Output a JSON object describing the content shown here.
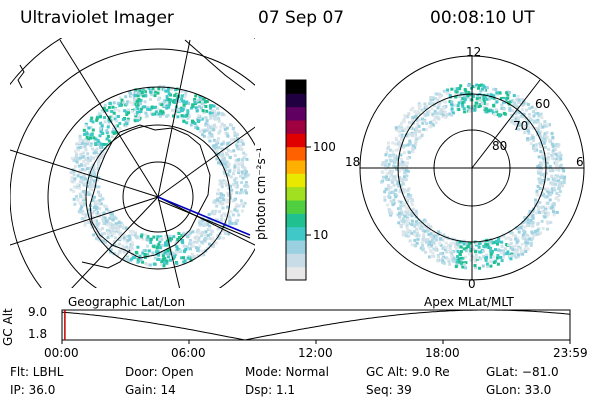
{
  "header": {
    "instrument": "Ultraviolet Imager",
    "date": "07 Sep 07",
    "time": "00:08:10 UT"
  },
  "colorbar": {
    "unit_label": "photon cm⁻²s⁻¹",
    "ticks": [
      "100",
      "10"
    ],
    "colors": [
      "#e8e8e8",
      "#c8dce8",
      "#9ad0e0",
      "#40c8c8",
      "#20c090",
      "#50d040",
      "#a0e020",
      "#e8e800",
      "#ffb000",
      "#ff6000",
      "#e00000",
      "#a00040",
      "#600060",
      "#200040",
      "#000000"
    ]
  },
  "left_panel": {
    "caption": "Geographic Lat/Lon"
  },
  "right_panel": {
    "caption": "Apex MLat/MLT",
    "mlt_labels": {
      "top": "12",
      "left": "18",
      "right": "6",
      "bottom": "0"
    },
    "lat_labels": [
      "60",
      "70",
      "80"
    ]
  },
  "altitude_plot": {
    "ylabel": "GC Alt",
    "y_ticks": [
      "9.0",
      "1.8"
    ],
    "x_ticks": [
      "00:00",
      "06:00",
      "12:00",
      "18:00",
      "23:59"
    ],
    "ylim": [
      1.8,
      9.0
    ],
    "xlim_hours": [
      0,
      24
    ],
    "current_time_hours": 0.136
  },
  "status": {
    "row1": [
      {
        "key": "flt",
        "text": "Flt: LBHL"
      },
      {
        "key": "door",
        "text": "Door: Open"
      },
      {
        "key": "mode",
        "text": "Mode: Normal"
      },
      {
        "key": "gcalt",
        "text": "GC Alt: 9.0 Re"
      },
      {
        "key": "glat",
        "text": "GLat: −81.0"
      }
    ],
    "row2": [
      {
        "key": "ip",
        "text": "IP: 36.0"
      },
      {
        "key": "gain",
        "text": "Gain: 14"
      },
      {
        "key": "dsp",
        "text": "Dsp:    1.1"
      },
      {
        "key": "seq",
        "text": "Seq: 39"
      },
      {
        "key": "glon",
        "text": "GLon:  33.0"
      }
    ]
  }
}
